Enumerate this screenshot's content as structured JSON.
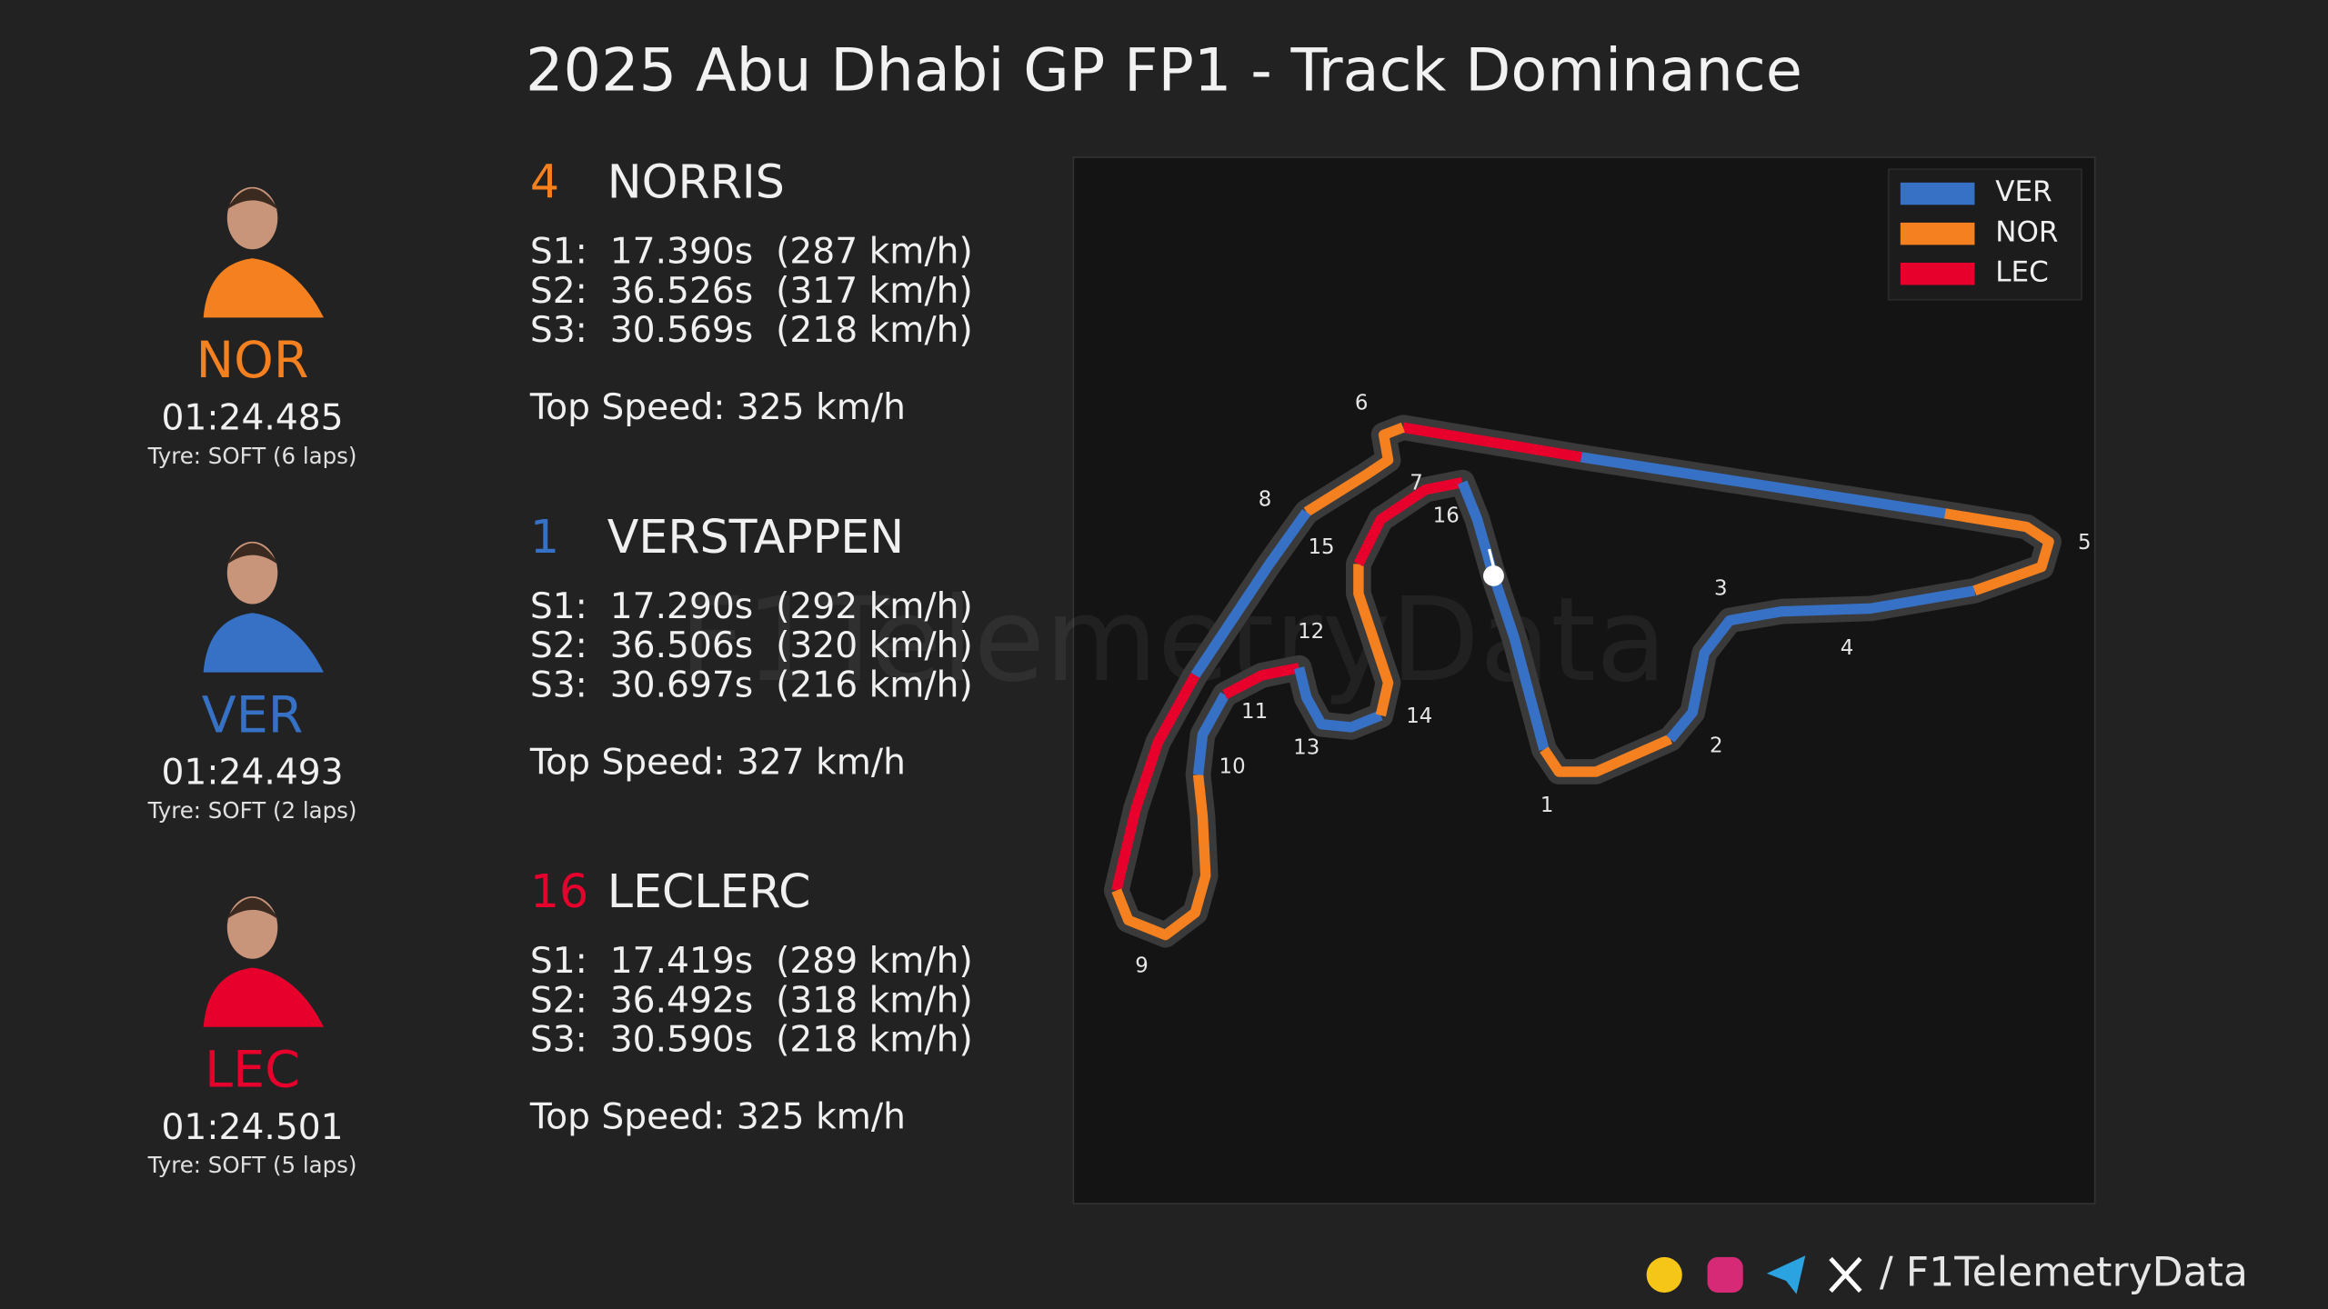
{
  "title": "2025 Abu Dhabi GP FP1 - Track Dominance",
  "drivers": [
    {
      "number": "4",
      "name": "NORRIS",
      "code": "NOR",
      "lap_time": "01:24.485",
      "tyre": "Tyre: SOFT (6 laps)",
      "color": "#f58020",
      "sectors": [
        "S1:  17.390s  (287 km/h)",
        "S2:  36.526s  (317 km/h)",
        "S3:  30.569s  (218 km/h)"
      ],
      "top_speed": "Top Speed: 325 km/h"
    },
    {
      "number": "1",
      "name": "VERSTAPPEN",
      "code": "VER",
      "lap_time": "01:24.493",
      "tyre": "Tyre: SOFT (2 laps)",
      "color": "#3671c6",
      "sectors": [
        "S1:  17.290s  (292 km/h)",
        "S2:  36.506s  (320 km/h)",
        "S3:  30.697s  (216 km/h)"
      ],
      "top_speed": "Top Speed: 327 km/h"
    },
    {
      "number": "16",
      "name": "LECLERC",
      "code": "LEC",
      "lap_time": "01:24.501",
      "tyre": "Tyre: SOFT (5 laps)",
      "color": "#e8002d",
      "sectors": [
        "S1:  17.419s  (289 km/h)",
        "S2:  36.492s  (318 km/h)",
        "S3:  30.590s  (218 km/h)"
      ],
      "top_speed": "Top Speed: 325 km/h"
    }
  ],
  "map": {
    "legend": [
      {
        "label": "VER",
        "color": "#3671c6"
      },
      {
        "label": "NOR",
        "color": "#f58020"
      },
      {
        "label": "LEC",
        "color": "#e8002d"
      }
    ],
    "corners": [
      "1",
      "2",
      "3",
      "4",
      "5",
      "6",
      "7",
      "8",
      "9",
      "10",
      "11",
      "12",
      "13",
      "14",
      "15",
      "16"
    ]
  },
  "watermark": "F1TelemetryData",
  "footer": "/ F1TelemetryData"
}
